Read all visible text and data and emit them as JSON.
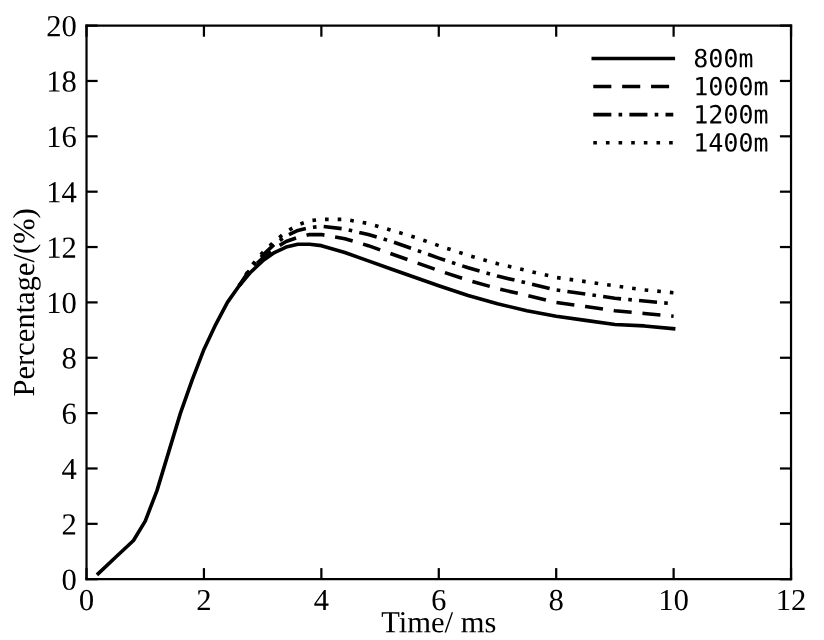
{
  "chart_data": {
    "type": "line",
    "xlabel": "Time/ ms",
    "ylabel": "Percentage/(%)",
    "xlim": [
      0,
      12
    ],
    "ylim": [
      0,
      20
    ],
    "xticks": [
      0,
      2,
      4,
      6,
      8,
      10,
      12
    ],
    "yticks": [
      0,
      2,
      4,
      6,
      8,
      10,
      12,
      14,
      16,
      18,
      20
    ],
    "grid": false,
    "legend": "top right",
    "marker": "none",
    "series": [
      {
        "name": "800m",
        "color": "#000000",
        "line_style": "solid",
        "x": [
          0.2,
          0.5,
          0.8,
          1.0,
          1.2,
          1.4,
          1.6,
          1.8,
          2.0,
          2.2,
          2.4,
          2.6,
          2.8,
          3.0,
          3.2,
          3.4,
          3.6,
          3.8,
          4.0,
          4.4,
          4.8,
          5.2,
          5.6,
          6.0,
          6.5,
          7.0,
          7.5,
          8.0,
          8.5,
          9.0,
          9.5,
          10.0
        ],
        "values": [
          0.2,
          0.8,
          1.4,
          2.1,
          3.2,
          4.6,
          6.0,
          7.2,
          8.3,
          9.2,
          10.0,
          10.6,
          11.1,
          11.5,
          11.8,
          12.0,
          12.1,
          12.1,
          12.05,
          11.8,
          11.5,
          11.2,
          10.9,
          10.6,
          10.25,
          9.95,
          9.7,
          9.5,
          9.35,
          9.2,
          9.15,
          9.05
        ]
      },
      {
        "name": "1000m",
        "color": "#000000",
        "line_style": "dashed",
        "x": [
          2.6,
          2.8,
          3.0,
          3.2,
          3.4,
          3.6,
          3.8,
          4.0,
          4.4,
          4.8,
          5.2,
          5.6,
          6.0,
          6.5,
          7.0,
          7.5,
          8.0,
          8.5,
          9.0,
          9.5,
          10.0
        ],
        "values": [
          10.6,
          11.2,
          11.6,
          11.95,
          12.2,
          12.35,
          12.45,
          12.45,
          12.3,
          12.05,
          11.75,
          11.45,
          11.15,
          10.8,
          10.5,
          10.25,
          10.0,
          9.85,
          9.7,
          9.6,
          9.5
        ]
      },
      {
        "name": "1200m",
        "color": "#000000",
        "line_style": "dashdot",
        "x": [
          2.6,
          2.8,
          3.0,
          3.2,
          3.4,
          3.6,
          3.8,
          4.0,
          4.4,
          4.8,
          5.2,
          5.6,
          6.0,
          6.5,
          7.0,
          7.5,
          8.0,
          8.5,
          9.0,
          9.5,
          10.0
        ],
        "values": [
          10.6,
          11.25,
          11.7,
          12.1,
          12.4,
          12.6,
          12.7,
          12.75,
          12.65,
          12.45,
          12.2,
          11.9,
          11.6,
          11.25,
          10.95,
          10.7,
          10.45,
          10.3,
          10.15,
          10.05,
          9.95
        ]
      },
      {
        "name": "1400m",
        "color": "#000000",
        "line_style": "dotted",
        "x": [
          2.6,
          2.8,
          3.0,
          3.2,
          3.4,
          3.6,
          3.8,
          4.0,
          4.4,
          4.8,
          5.2,
          5.6,
          6.0,
          6.5,
          7.0,
          7.5,
          8.0,
          8.5,
          9.0,
          9.5,
          10.0
        ],
        "values": [
          10.6,
          11.3,
          11.8,
          12.2,
          12.55,
          12.8,
          12.95,
          13.0,
          13.0,
          12.85,
          12.6,
          12.35,
          12.05,
          11.7,
          11.4,
          11.15,
          10.9,
          10.75,
          10.6,
          10.45,
          10.35
        ]
      }
    ]
  }
}
